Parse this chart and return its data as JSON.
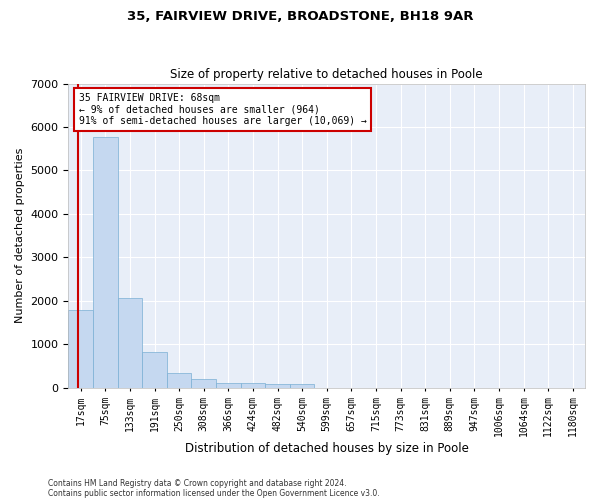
{
  "title1": "35, FAIRVIEW DRIVE, BROADSTONE, BH18 9AR",
  "title2": "Size of property relative to detached houses in Poole",
  "xlabel": "Distribution of detached houses by size in Poole",
  "ylabel": "Number of detached properties",
  "bar_values": [
    1780,
    5780,
    2060,
    820,
    340,
    190,
    115,
    105,
    90,
    80,
    0,
    0,
    0,
    0,
    0,
    0,
    0,
    0,
    0,
    0,
    0
  ],
  "bar_labels": [
    "17sqm",
    "75sqm",
    "133sqm",
    "191sqm",
    "250sqm",
    "308sqm",
    "366sqm",
    "424sqm",
    "482sqm",
    "540sqm",
    "599sqm",
    "657sqm",
    "715sqm",
    "773sqm",
    "831sqm",
    "889sqm",
    "947sqm",
    "1006sqm",
    "1064sqm",
    "1122sqm",
    "1180sqm"
  ],
  "bar_color": "#c5d8f0",
  "bar_edge_color": "#7aafd4",
  "vline_color": "#cc0000",
  "vline_x": -0.12,
  "annotation_line1": "35 FAIRVIEW DRIVE: 68sqm",
  "annotation_line2": "← 9% of detached houses are smaller (964)",
  "annotation_line3": "91% of semi-detached houses are larger (10,069) →",
  "annotation_box_color": "#ffffff",
  "annotation_box_edge_color": "#cc0000",
  "ylim": [
    0,
    7000
  ],
  "yticks": [
    0,
    1000,
    2000,
    3000,
    4000,
    5000,
    6000,
    7000
  ],
  "background_color": "#e8eef8",
  "grid_color": "#ffffff",
  "footer_line1": "Contains HM Land Registry data © Crown copyright and database right 2024.",
  "footer_line2": "Contains public sector information licensed under the Open Government Licence v3.0."
}
